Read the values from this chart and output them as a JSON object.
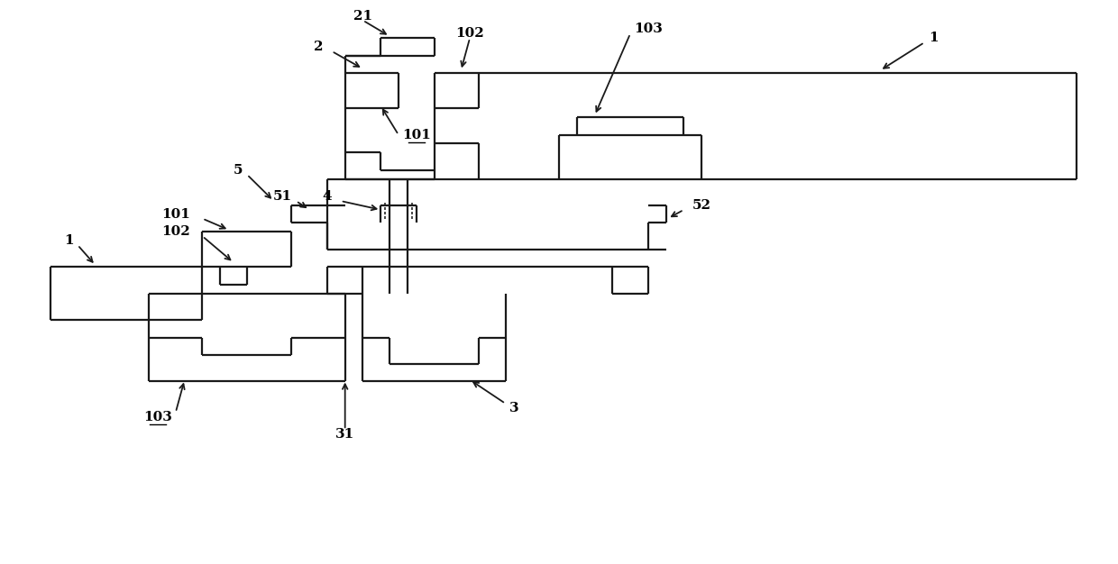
{
  "line_color": "#1a1a1a",
  "bg_color": "#ffffff",
  "lw": 1.6,
  "fig_width": 12.4,
  "fig_height": 6.26
}
